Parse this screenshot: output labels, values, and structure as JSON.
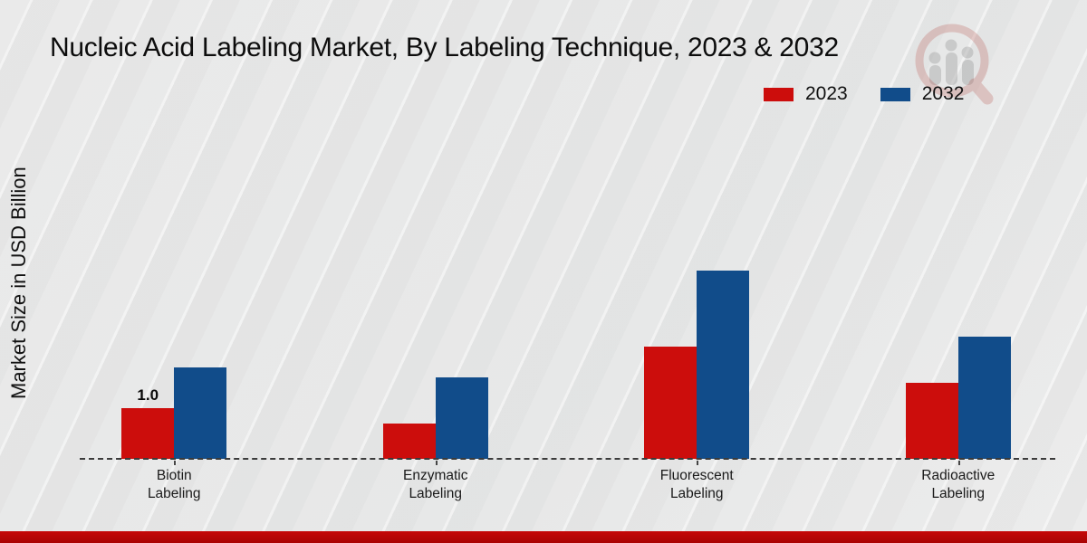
{
  "page": {
    "title": "Nucleic Acid Labeling Market, By Labeling Technique, 2023 & 2032",
    "ylabel": "Market Size in USD Billion"
  },
  "legend": [
    {
      "label": "2023",
      "color": "#cc0d0c"
    },
    {
      "label": "2032",
      "color": "#114c8a"
    }
  ],
  "colors": {
    "series_2023": "#cc0d0c",
    "series_2032": "#114c8a",
    "footer_band": "#b30505",
    "background": "#e9eaea",
    "baseline": "#3b3b3b"
  },
  "watermark": {
    "icon": "magnifier-bar-chart-logo"
  },
  "chart_data": {
    "type": "bar",
    "title": "Nucleic Acid Labeling Market, By Labeling Technique, 2023 & 2032",
    "xlabel": "",
    "ylabel": "Market Size in USD Billion",
    "categories": [
      "Biotin Labeling",
      "Enzymatic Labeling",
      "Fluorescent Labeling",
      "Radioactive Labeling"
    ],
    "series": [
      {
        "name": "2023",
        "color": "#cc0d0c",
        "values": [
          1.0,
          0.7,
          2.2,
          1.5
        ]
      },
      {
        "name": "2032",
        "color": "#114c8a",
        "values": [
          1.8,
          1.6,
          3.7,
          2.4
        ]
      }
    ],
    "ylim": [
      0,
      4
    ],
    "grid": false,
    "legend_position": "upper-right",
    "bar_labels": [
      {
        "category_index": 0,
        "series_index": 0,
        "text": "1.0"
      }
    ]
  }
}
